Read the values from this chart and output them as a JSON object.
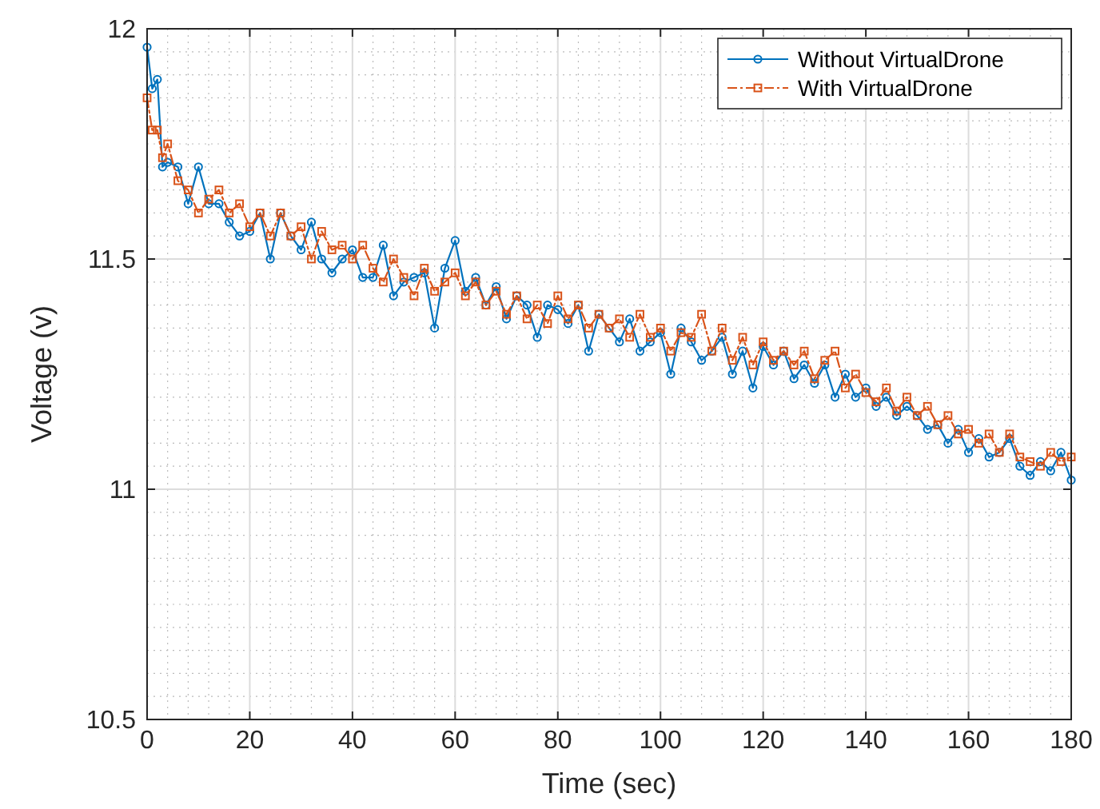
{
  "chart_data": {
    "type": "line",
    "xlabel": "Time (sec)",
    "ylabel": "Voltage (v)",
    "xlim": [
      0,
      180
    ],
    "ylim": [
      10.5,
      12
    ],
    "xticks": [
      0,
      20,
      40,
      60,
      80,
      100,
      120,
      140,
      160,
      180
    ],
    "yticks": [
      10.5,
      11,
      11.5,
      12
    ],
    "grid": true,
    "legend": "top right",
    "x": [
      0,
      1,
      2,
      3,
      4,
      6,
      8,
      10,
      12,
      14,
      16,
      18,
      20,
      22,
      24,
      26,
      28,
      30,
      32,
      34,
      36,
      38,
      40,
      42,
      44,
      46,
      48,
      50,
      52,
      54,
      56,
      58,
      60,
      62,
      64,
      66,
      68,
      70,
      72,
      74,
      76,
      78,
      80,
      82,
      84,
      86,
      88,
      90,
      92,
      94,
      96,
      98,
      100,
      102,
      104,
      106,
      108,
      110,
      112,
      114,
      116,
      118,
      120,
      122,
      124,
      126,
      128,
      130,
      132,
      134,
      136,
      138,
      140,
      142,
      144,
      146,
      148,
      150,
      152,
      154,
      156,
      158,
      160,
      162,
      164,
      166,
      168,
      170,
      172,
      174,
      176,
      178,
      180
    ],
    "series": [
      {
        "name": "Without VirtualDrone",
        "color": "#0072bd",
        "marker": "circle",
        "line_style": "solid",
        "values": [
          11.96,
          11.87,
          11.89,
          11.7,
          11.71,
          11.7,
          11.62,
          11.7,
          11.62,
          11.62,
          11.58,
          11.55,
          11.56,
          11.6,
          11.5,
          11.6,
          11.55,
          11.52,
          11.58,
          11.5,
          11.47,
          11.5,
          11.52,
          11.46,
          11.46,
          11.53,
          11.42,
          11.45,
          11.46,
          11.47,
          11.35,
          11.48,
          11.54,
          11.43,
          11.46,
          11.4,
          11.44,
          11.37,
          11.42,
          11.4,
          11.33,
          11.4,
          11.39,
          11.36,
          11.4,
          11.3,
          11.38,
          11.35,
          11.32,
          11.37,
          11.3,
          11.32,
          11.34,
          11.25,
          11.35,
          11.32,
          11.28,
          11.3,
          11.33,
          11.25,
          11.3,
          11.22,
          11.31,
          11.27,
          11.3,
          11.24,
          11.27,
          11.23,
          11.27,
          11.2,
          11.25,
          11.2,
          11.22,
          11.18,
          11.2,
          11.16,
          11.18,
          11.16,
          11.13,
          11.14,
          11.1,
          11.13,
          11.08,
          11.11,
          11.07,
          11.08,
          11.11,
          11.05,
          11.03,
          11.06,
          11.04,
          11.08,
          11.02
        ]
      },
      {
        "name": "With VirtualDrone",
        "color": "#d95319",
        "marker": "square",
        "line_style": "dashed",
        "values": [
          11.85,
          11.78,
          11.78,
          11.72,
          11.75,
          11.67,
          11.65,
          11.6,
          11.63,
          11.65,
          11.6,
          11.62,
          11.57,
          11.6,
          11.55,
          11.6,
          11.55,
          11.57,
          11.5,
          11.56,
          11.52,
          11.53,
          11.5,
          11.53,
          11.48,
          11.45,
          11.5,
          11.46,
          11.42,
          11.48,
          11.43,
          11.45,
          11.47,
          11.42,
          11.45,
          11.4,
          11.43,
          11.38,
          11.42,
          11.37,
          11.4,
          11.36,
          11.42,
          11.37,
          11.4,
          11.35,
          11.38,
          11.35,
          11.37,
          11.33,
          11.38,
          11.33,
          11.35,
          11.3,
          11.34,
          11.33,
          11.38,
          11.3,
          11.35,
          11.28,
          11.33,
          11.27,
          11.32,
          11.28,
          11.3,
          11.27,
          11.3,
          11.24,
          11.28,
          11.3,
          11.22,
          11.25,
          11.21,
          11.19,
          11.22,
          11.17,
          11.2,
          11.16,
          11.18,
          11.14,
          11.16,
          11.12,
          11.13,
          11.1,
          11.12,
          11.08,
          11.12,
          11.07,
          11.06,
          11.05,
          11.08,
          11.06,
          11.07
        ]
      }
    ]
  }
}
